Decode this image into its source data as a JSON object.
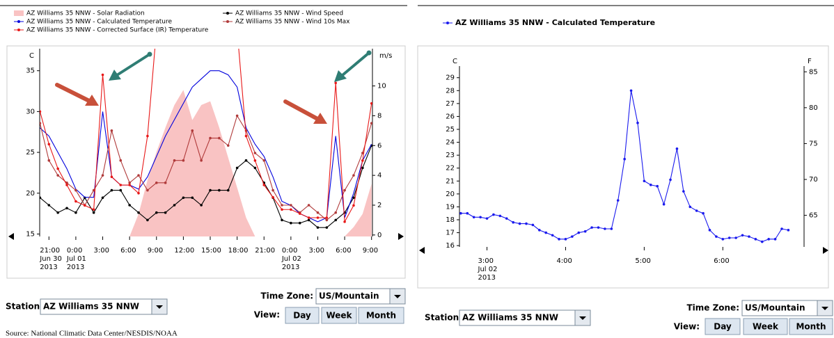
{
  "chart_data": [
    {
      "type": "line",
      "y_label": "C",
      "y2_label": "m/s",
      "legend": "top-left",
      "grid": false,
      "xlim": [
        "2013-06-30T19:58",
        "2013-07-02T09:06"
      ],
      "ylim": [
        14.7,
        37.7
      ],
      "yticks": [
        15,
        20,
        25,
        30,
        35
      ],
      "y2lim": [
        -0.1,
        12.5
      ],
      "y2ticks": [
        0,
        2,
        4,
        6,
        8,
        10
      ],
      "y3lim": [
        0,
        1000
      ],
      "xticks": [
        {
          "value": "2013-06-30T21:00",
          "label": [
            "21:00",
            "Jun 30",
            "2013"
          ]
        },
        {
          "value": "2013-07-01T00:00",
          "label": [
            "0:00",
            "Jul 01",
            "2013"
          ]
        },
        {
          "value": "2013-07-01T03:00",
          "label": [
            "3:00"
          ]
        },
        {
          "value": "2013-07-01T06:00",
          "label": [
            "6:00"
          ]
        },
        {
          "value": "2013-07-01T09:00",
          "label": [
            "9:00"
          ]
        },
        {
          "value": "2013-07-01T12:00",
          "label": [
            "12:00"
          ]
        },
        {
          "value": "2013-07-01T15:00",
          "label": [
            "15:00"
          ]
        },
        {
          "value": "2013-07-01T18:00",
          "label": [
            "18:00"
          ]
        },
        {
          "value": "2013-07-01T21:00",
          "label": [
            "21:00"
          ]
        },
        {
          "value": "2013-07-02T00:00",
          "label": [
            "0:00",
            "Jul 02",
            "2013"
          ]
        },
        {
          "value": "2013-07-02T03:00",
          "label": [
            "3:00"
          ]
        },
        {
          "value": "2013-07-02T06:00",
          "label": [
            "6:00"
          ]
        },
        {
          "value": "2013-07-02T09:00",
          "label": [
            "9:00"
          ]
        }
      ],
      "x": [
        "2013-06-30T20:00",
        "2013-06-30T21:00",
        "2013-06-30T22:00",
        "2013-06-30T23:00",
        "2013-07-01T00:00",
        "2013-07-01T01:00",
        "2013-07-01T02:00",
        "2013-07-01T03:00",
        "2013-07-01T04:00",
        "2013-07-01T05:00",
        "2013-07-01T06:00",
        "2013-07-01T07:00",
        "2013-07-01T08:00",
        "2013-07-01T09:00",
        "2013-07-01T10:00",
        "2013-07-01T11:00",
        "2013-07-01T12:00",
        "2013-07-01T13:00",
        "2013-07-01T14:00",
        "2013-07-01T15:00",
        "2013-07-01T16:00",
        "2013-07-01T17:00",
        "2013-07-01T18:00",
        "2013-07-01T19:00",
        "2013-07-01T20:00",
        "2013-07-01T21:00",
        "2013-07-01T22:00",
        "2013-07-01T23:00",
        "2013-07-02T00:00",
        "2013-07-02T01:00",
        "2013-07-02T02:00",
        "2013-07-02T03:00",
        "2013-07-02T04:00",
        "2013-07-02T05:00",
        "2013-07-02T06:00",
        "2013-07-02T07:00",
        "2013-07-02T08:00",
        "2013-07-02T09:00"
      ],
      "series": [
        {
          "name": "AZ Williams 35 NNW - Solar Radiation",
          "style": "area",
          "axis": "y3",
          "color": "#f9c3c3",
          "markers": false,
          "values": [
            0,
            0,
            0,
            0,
            0,
            0,
            0,
            0,
            0,
            0,
            0,
            120,
            300,
            450,
            580,
            700,
            780,
            620,
            700,
            720,
            580,
            420,
            260,
            100,
            0,
            0,
            0,
            0,
            0,
            0,
            0,
            0,
            0,
            0,
            0,
            50,
            120,
            280
          ]
        },
        {
          "name": "AZ Williams 35 NNW - Wind Speed",
          "style": "line",
          "axis": "y2",
          "color": "#000000",
          "markers": true,
          "values": [
            2.5,
            2,
            1.5,
            1.8,
            1.5,
            2.5,
            1.5,
            2.5,
            3,
            3,
            2,
            1.5,
            1,
            1.5,
            1.5,
            2,
            2.5,
            2.5,
            2,
            3,
            3,
            3,
            4.5,
            5,
            4.5,
            3.5,
            2.5,
            1,
            0.8,
            0.8,
            1,
            0.5,
            0.5,
            1,
            1.5,
            2.5,
            4.5,
            6
          ]
        },
        {
          "name": "AZ Williams 35 NNW - Calculated Temperature",
          "style": "line",
          "axis": "y",
          "color": "#0000dd",
          "markers": false,
          "values": [
            28,
            27,
            25,
            23,
            20.5,
            19.5,
            19.5,
            30,
            22,
            21,
            21,
            20.5,
            22,
            24.5,
            27,
            29,
            31,
            33,
            34,
            35,
            35,
            34.5,
            33,
            28,
            26,
            24.5,
            22,
            19,
            18.5,
            17.5,
            17,
            16.5,
            17,
            27,
            17,
            20,
            24,
            26
          ]
        },
        {
          "name": "AZ Williams 35 NNW - Wind 10s Max",
          "style": "line",
          "axis": "y2",
          "color": "#b03a3a",
          "markers": true,
          "values": [
            7.5,
            5,
            4,
            3.5,
            3,
            2,
            3,
            4,
            7,
            5,
            3.5,
            4,
            3,
            3.5,
            3.5,
            5,
            5,
            7,
            5,
            6.5,
            6.5,
            6,
            8,
            7,
            5.5,
            5,
            3,
            2,
            2,
            1.5,
            2,
            1.5,
            1,
            1.5,
            3,
            4,
            5.5,
            7.5
          ]
        },
        {
          "name": "AZ Williams 35 NNW - Corrected Surface (IR) Temperature",
          "style": "line",
          "axis": "y",
          "color": "#e81818",
          "markers": true,
          "values": [
            30,
            26,
            23,
            21,
            19,
            18.5,
            18,
            34.5,
            22,
            21,
            21,
            20,
            27,
            40,
            null,
            null,
            null,
            null,
            null,
            null,
            null,
            null,
            40,
            27,
            24,
            21,
            19.5,
            18,
            18,
            17.5,
            17,
            17,
            17,
            33.5,
            16.5,
            18.5,
            24,
            31
          ]
        }
      ]
    },
    {
      "type": "line",
      "y_label": "C",
      "y2_label": "F",
      "legend": "top-left",
      "grid": false,
      "xlim": [
        "2013-07-02T02:39",
        "2013-07-02T07:02"
      ],
      "ylim": [
        15.9,
        29.9
      ],
      "yticks": [
        16,
        17,
        18,
        19,
        20,
        21,
        22,
        23,
        24,
        25,
        26,
        27,
        28,
        29
      ],
      "y2lim": [
        60.6,
        85.8
      ],
      "y2ticks": [
        65,
        70,
        75,
        80,
        85
      ],
      "xticks": [
        {
          "value": "2013-07-02T03:00",
          "label": [
            "3:00",
            "Jul 02",
            "2013"
          ]
        },
        {
          "value": "2013-07-02T04:00",
          "label": [
            "4:00"
          ]
        },
        {
          "value": "2013-07-02T05:00",
          "label": [
            "5:00"
          ]
        },
        {
          "value": "2013-07-02T06:00",
          "label": [
            "6:00"
          ]
        }
      ],
      "x": [
        "2013-07-02T02:40",
        "2013-07-02T02:45",
        "2013-07-02T02:50",
        "2013-07-02T02:55",
        "2013-07-02T03:00",
        "2013-07-02T03:05",
        "2013-07-02T03:10",
        "2013-07-02T03:15",
        "2013-07-02T03:20",
        "2013-07-02T03:25",
        "2013-07-02T03:30",
        "2013-07-02T03:35",
        "2013-07-02T03:40",
        "2013-07-02T03:45",
        "2013-07-02T03:50",
        "2013-07-02T03:55",
        "2013-07-02T04:00",
        "2013-07-02T04:05",
        "2013-07-02T04:10",
        "2013-07-02T04:15",
        "2013-07-02T04:20",
        "2013-07-02T04:25",
        "2013-07-02T04:30",
        "2013-07-02T04:35",
        "2013-07-02T04:40",
        "2013-07-02T04:45",
        "2013-07-02T04:50",
        "2013-07-02T04:55",
        "2013-07-02T05:00",
        "2013-07-02T05:05",
        "2013-07-02T05:10",
        "2013-07-02T05:15",
        "2013-07-02T05:20",
        "2013-07-02T05:25",
        "2013-07-02T05:30",
        "2013-07-02T05:35",
        "2013-07-02T05:40",
        "2013-07-02T05:45",
        "2013-07-02T05:50",
        "2013-07-02T05:55",
        "2013-07-02T06:00",
        "2013-07-02T06:05",
        "2013-07-02T06:10",
        "2013-07-02T06:15",
        "2013-07-02T06:20",
        "2013-07-02T06:25",
        "2013-07-02T06:30",
        "2013-07-02T06:35",
        "2013-07-02T06:40",
        "2013-07-02T06:45",
        "2013-07-02T06:50"
      ],
      "series": [
        {
          "name": "AZ Williams 35 NNW - Calculated Temperature",
          "style": "line",
          "axis": "y",
          "color": "#1a1aee",
          "markers": true,
          "values": [
            18.5,
            18.5,
            18.2,
            18.2,
            18.1,
            18.4,
            18.3,
            18.1,
            17.8,
            17.7,
            17.7,
            17.6,
            17.2,
            17.0,
            16.8,
            16.5,
            16.5,
            16.7,
            17.0,
            17.1,
            17.4,
            17.4,
            17.3,
            17.3,
            19.5,
            22.7,
            28.0,
            25.5,
            21.0,
            20.7,
            20.6,
            19.2,
            21.1,
            23.5,
            20.2,
            19.0,
            18.7,
            18.5,
            17.2,
            16.7,
            16.5,
            16.6,
            16.6,
            16.8,
            16.7,
            16.5,
            16.3,
            16.5,
            16.5,
            17.3,
            17.2
          ]
        }
      ]
    }
  ],
  "panels": [
    {
      "station_label": "Station:",
      "station": "AZ Williams 35 NNW",
      "timezone_label": "Time Zone:",
      "timezone": "US/Mountain",
      "view_label": "View:",
      "buttons": [
        "Day",
        "Week",
        "Month"
      ]
    },
    {
      "station_label": "Station:",
      "station": "AZ Williams 35 NNW",
      "timezone_label": "Time Zone:",
      "timezone": "US/Mountain",
      "view_label": "View:",
      "buttons": [
        "Day",
        "Week",
        "Month"
      ]
    }
  ],
  "source": "Source: National Climatic Data Center/NESDIS/NOAA"
}
